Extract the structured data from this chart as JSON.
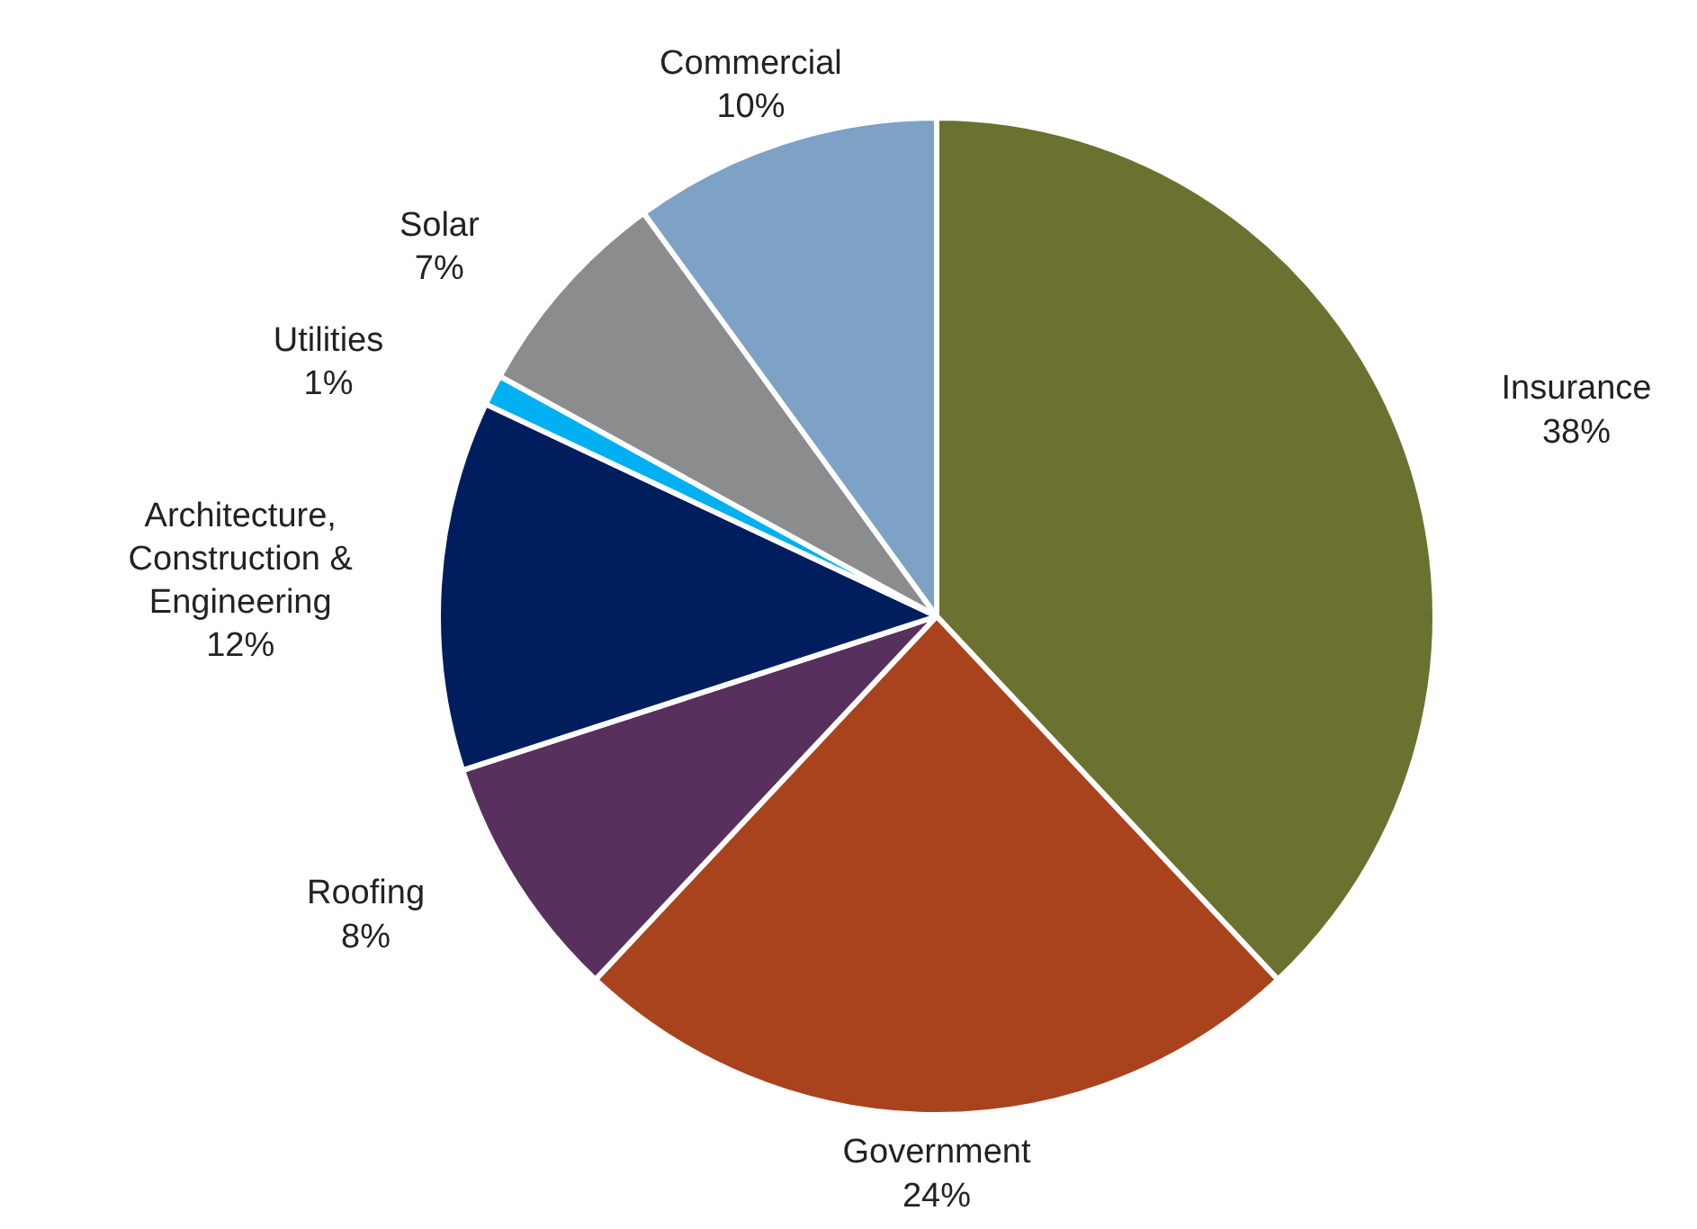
{
  "chart_data": {
    "type": "pie",
    "categories": [
      "Insurance",
      "Government",
      "Roofing",
      "Architecture, Construction & Engineering",
      "Utilities",
      "Solar",
      "Commercial"
    ],
    "values": [
      38,
      24,
      8,
      12,
      1,
      7,
      10
    ],
    "value_labels": [
      "38%",
      "24%",
      "8%",
      "12%",
      "1%",
      "7%",
      "10%"
    ],
    "colors": [
      "#6b7230",
      "#a9431e",
      "#58305e",
      "#001e5e",
      "#00b0f0",
      "#8a8c8e",
      "#7ea1c6"
    ],
    "legend": false
  }
}
